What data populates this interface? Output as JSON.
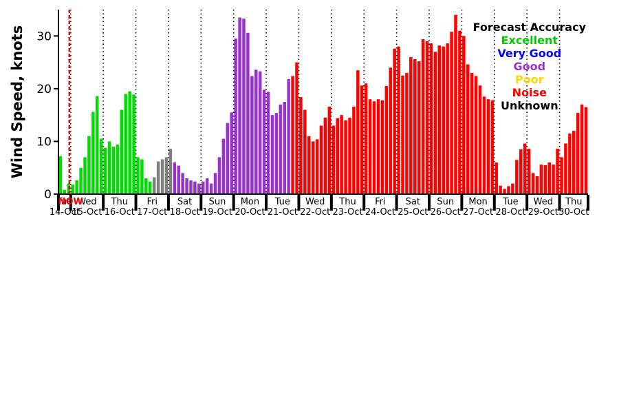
{
  "legend": {
    "title": "Forecast Accuracy",
    "title_color": "#000000",
    "entries": [
      {
        "label": "Excellent",
        "color": "#00CC00"
      },
      {
        "label": "Very Good",
        "color": "#0000FF"
      },
      {
        "label": "Good",
        "color": "#9933CC"
      },
      {
        "label": "Poor",
        "color": "#FFD700"
      },
      {
        "label": "Noise",
        "color": "#FF0000"
      },
      {
        "label": "Unknown",
        "color": "#000000"
      }
    ]
  },
  "now_marker": {
    "label": "NOW",
    "color": "#FF0000",
    "after_bar_index": 3
  },
  "chart_data": {
    "type": "bar",
    "title": "",
    "ylabel": "Wind Speed, knots",
    "ylim": [
      0,
      35
    ],
    "yticks": [
      0,
      10,
      20,
      30
    ],
    "grid": false,
    "legend_position": "top-right",
    "quality_names": {
      "e": "Excellent",
      "vg": "Very Good",
      "g": "Good",
      "p": "Poor",
      "n": "Noise",
      "u": "Unknown"
    },
    "quality_colors": {
      "e": "#00DD00",
      "vg": "#0000FF",
      "g": "#9933CC",
      "p": "#FFD700",
      "n": "#FF0000",
      "u": "#7F7F7F"
    },
    "days": [
      {
        "weekday": "Tue",
        "date": "14-Oct",
        "bars": [
          [
            7.2,
            "e"
          ],
          [
            0.8,
            "e"
          ],
          [
            2.0,
            "e"
          ]
        ]
      },
      {
        "weekday": "Wed",
        "date": "15-Oct",
        "bars": [
          [
            1.8,
            "e"
          ],
          [
            2.6,
            "e"
          ],
          [
            5.0,
            "e"
          ],
          [
            7.0,
            "e"
          ],
          [
            11.0,
            "e"
          ],
          [
            15.6,
            "e"
          ],
          [
            18.6,
            "e"
          ],
          [
            10.5,
            "e"
          ]
        ]
      },
      {
        "weekday": "Thu",
        "date": "16-Oct",
        "bars": [
          [
            8.8,
            "e"
          ],
          [
            10.0,
            "e"
          ],
          [
            9.0,
            "e"
          ],
          [
            9.4,
            "e"
          ],
          [
            16.0,
            "e"
          ],
          [
            19.0,
            "e"
          ],
          [
            19.5,
            "e"
          ],
          [
            18.9,
            "e"
          ]
        ]
      },
      {
        "weekday": "Fri",
        "date": "17-Oct",
        "bars": [
          [
            7.0,
            "e"
          ],
          [
            6.6,
            "e"
          ],
          [
            3.0,
            "e"
          ],
          [
            2.4,
            "e"
          ],
          [
            3.2,
            "u"
          ],
          [
            6.2,
            "u"
          ],
          [
            6.6,
            "u"
          ],
          [
            7.0,
            "u"
          ]
        ]
      },
      {
        "weekday": "Sat",
        "date": "18-Oct",
        "bars": [
          [
            8.6,
            "u"
          ],
          [
            6.0,
            "g"
          ],
          [
            5.4,
            "g"
          ],
          [
            4.0,
            "g"
          ],
          [
            3.0,
            "g"
          ],
          [
            2.6,
            "g"
          ],
          [
            2.4,
            "g"
          ],
          [
            2.0,
            "g"
          ]
        ]
      },
      {
        "weekday": "Sun",
        "date": "19-Oct",
        "bars": [
          [
            2.4,
            "g"
          ],
          [
            3.0,
            "g"
          ],
          [
            2.0,
            "g"
          ],
          [
            4.0,
            "g"
          ],
          [
            7.0,
            "g"
          ],
          [
            10.5,
            "g"
          ],
          [
            13.5,
            "g"
          ],
          [
            15.5,
            "g"
          ]
        ]
      },
      {
        "weekday": "Mon",
        "date": "20-Oct",
        "bars": [
          [
            29.5,
            "g"
          ],
          [
            33.5,
            "g"
          ],
          [
            33.3,
            "g"
          ],
          [
            30.6,
            "g"
          ],
          [
            22.4,
            "g"
          ],
          [
            23.6,
            "g"
          ],
          [
            23.3,
            "g"
          ],
          [
            19.8,
            "g"
          ]
        ]
      },
      {
        "weekday": "Tue",
        "date": "21-Oct",
        "bars": [
          [
            19.4,
            "g"
          ],
          [
            15.0,
            "g"
          ],
          [
            15.4,
            "g"
          ],
          [
            17.0,
            "g"
          ],
          [
            17.5,
            "g"
          ],
          [
            21.8,
            "g"
          ],
          [
            22.4,
            "n"
          ],
          [
            25.0,
            "n"
          ]
        ]
      },
      {
        "weekday": "Wed",
        "date": "22-Oct",
        "bars": [
          [
            18.4,
            "n"
          ],
          [
            16.0,
            "n"
          ],
          [
            11.0,
            "n"
          ],
          [
            10.0,
            "n"
          ],
          [
            10.4,
            "n"
          ],
          [
            13.0,
            "n"
          ],
          [
            14.5,
            "n"
          ],
          [
            16.6,
            "n"
          ]
        ]
      },
      {
        "weekday": "Thu",
        "date": "23-Oct",
        "bars": [
          [
            13.0,
            "n"
          ],
          [
            14.4,
            "n"
          ],
          [
            15.0,
            "n"
          ],
          [
            14.0,
            "n"
          ],
          [
            14.5,
            "n"
          ],
          [
            16.6,
            "n"
          ],
          [
            23.5,
            "n"
          ],
          [
            20.6,
            "n"
          ]
        ]
      },
      {
        "weekday": "Fri",
        "date": "24-Oct",
        "bars": [
          [
            21.0,
            "n"
          ],
          [
            18.0,
            "n"
          ],
          [
            17.6,
            "n"
          ],
          [
            18.0,
            "n"
          ],
          [
            17.8,
            "n"
          ],
          [
            20.5,
            "n"
          ],
          [
            24.0,
            "n"
          ],
          [
            27.6,
            "n"
          ]
        ]
      },
      {
        "weekday": "Sat",
        "date": "25-Oct",
        "bars": [
          [
            28.0,
            "n"
          ],
          [
            22.5,
            "n"
          ],
          [
            23.0,
            "n"
          ],
          [
            26.0,
            "n"
          ],
          [
            25.6,
            "n"
          ],
          [
            25.2,
            "n"
          ],
          [
            29.4,
            "n"
          ],
          [
            29.0,
            "n"
          ]
        ]
      },
      {
        "weekday": "Sun",
        "date": "26-Oct",
        "bars": [
          [
            28.6,
            "n"
          ],
          [
            27.0,
            "n"
          ],
          [
            28.2,
            "n"
          ],
          [
            28.0,
            "n"
          ],
          [
            28.6,
            "n"
          ],
          [
            30.8,
            "n"
          ],
          [
            34.0,
            "n"
          ],
          [
            31.0,
            "n"
          ]
        ]
      },
      {
        "weekday": "Mon",
        "date": "27-Oct",
        "bars": [
          [
            30.0,
            "n"
          ],
          [
            24.6,
            "n"
          ],
          [
            23.0,
            "n"
          ],
          [
            22.4,
            "n"
          ],
          [
            20.6,
            "n"
          ],
          [
            18.5,
            "n"
          ],
          [
            18.0,
            "n"
          ],
          [
            17.8,
            "n"
          ]
        ]
      },
      {
        "weekday": "Tue",
        "date": "28-Oct",
        "bars": [
          [
            6.0,
            "n"
          ],
          [
            1.6,
            "n"
          ],
          [
            1.0,
            "n"
          ],
          [
            1.5,
            "n"
          ],
          [
            2.0,
            "n"
          ],
          [
            6.5,
            "n"
          ],
          [
            8.5,
            "n"
          ],
          [
            9.6,
            "n"
          ]
        ]
      },
      {
        "weekday": "Wed",
        "date": "29-Oct",
        "bars": [
          [
            8.6,
            "n"
          ],
          [
            4.0,
            "n"
          ],
          [
            3.4,
            "n"
          ],
          [
            5.6,
            "n"
          ],
          [
            5.5,
            "n"
          ],
          [
            6.0,
            "n"
          ],
          [
            5.6,
            "n"
          ],
          [
            8.6,
            "n"
          ]
        ]
      },
      {
        "weekday": "Thu",
        "date": "30-Oct",
        "bars": [
          [
            7.0,
            "n"
          ],
          [
            9.6,
            "n"
          ],
          [
            11.5,
            "n"
          ],
          [
            12.0,
            "n"
          ],
          [
            15.4,
            "n"
          ],
          [
            17.0,
            "n"
          ],
          [
            16.5,
            "n"
          ]
        ]
      }
    ]
  }
}
